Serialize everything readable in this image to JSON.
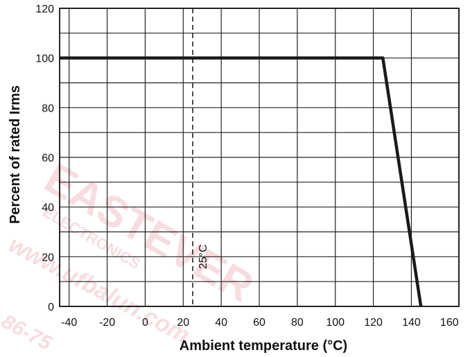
{
  "chart_data": {
    "type": "line",
    "xlabel": "Ambient temperature (°C)",
    "ylabel": "Percent of rated Irms",
    "xlim": [
      -45,
      165
    ],
    "ylim": [
      0,
      120
    ],
    "xticks": [
      -40,
      -20,
      0,
      20,
      40,
      60,
      80,
      100,
      120,
      140,
      160
    ],
    "yticks": [
      0,
      20,
      40,
      60,
      80,
      100,
      120
    ],
    "x_gridlines": [
      -40,
      -20,
      0,
      20,
      40,
      60,
      80,
      100,
      120,
      140,
      165
    ],
    "y_gridlines": [
      0,
      10,
      20,
      30,
      40,
      50,
      60,
      70,
      80,
      90,
      100,
      110,
      120
    ],
    "grid": true,
    "series": [
      {
        "x": [
          -45,
          125,
          145
        ],
        "y": [
          100,
          100,
          0
        ],
        "color": "#1a1a1a"
      }
    ],
    "reference_line": {
      "x": 25,
      "style": "dashed",
      "label": "25°C"
    }
  },
  "watermark": {
    "main": "EASTEVER",
    "sub": "ELECTRONICS",
    "url": "www.ufbalun.com",
    "phone": "86-75",
    "color": "#e8a0a8"
  }
}
